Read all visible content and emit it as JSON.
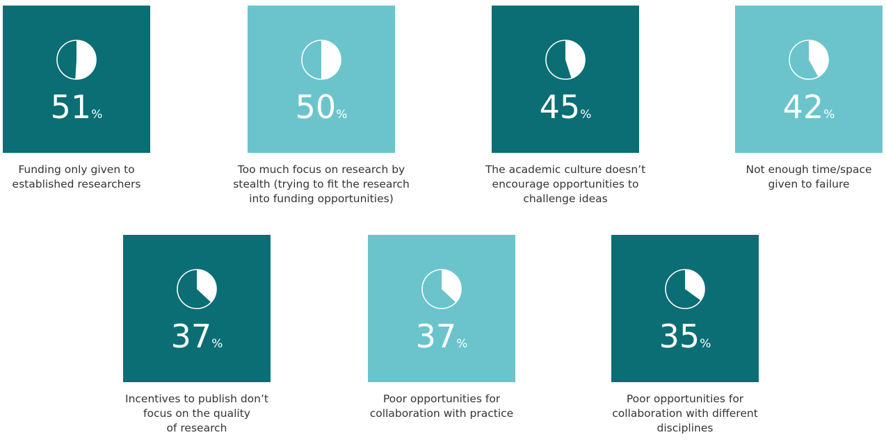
{
  "chart_data": {
    "type": "pie-tiles",
    "categories": [
      "Funding only given to\nestablished researchers",
      "Too much focus on research by\nstealth (trying to fit the research\ninto funding opportunities)",
      "The academic culture doesn’t\nencourage opportunities to\nchallenge ideas",
      "Not enough time/space\ngiven to failure",
      "Incentives to publish don’t\nfocus on the quality\nof research",
      "Poor opportunities for\ncollaboration with practice",
      "Poor opportunities for\ncollaboration with different\ndisciplines"
    ],
    "values": [
      51,
      50,
      45,
      42,
      37,
      37,
      35
    ],
    "unit": "%",
    "colors": [
      "#0a6e74",
      "#6bc4cc",
      "#0a6e74",
      "#6bc4cc",
      "#0a6e74",
      "#6bc4cc",
      "#0a6e74"
    ]
  }
}
